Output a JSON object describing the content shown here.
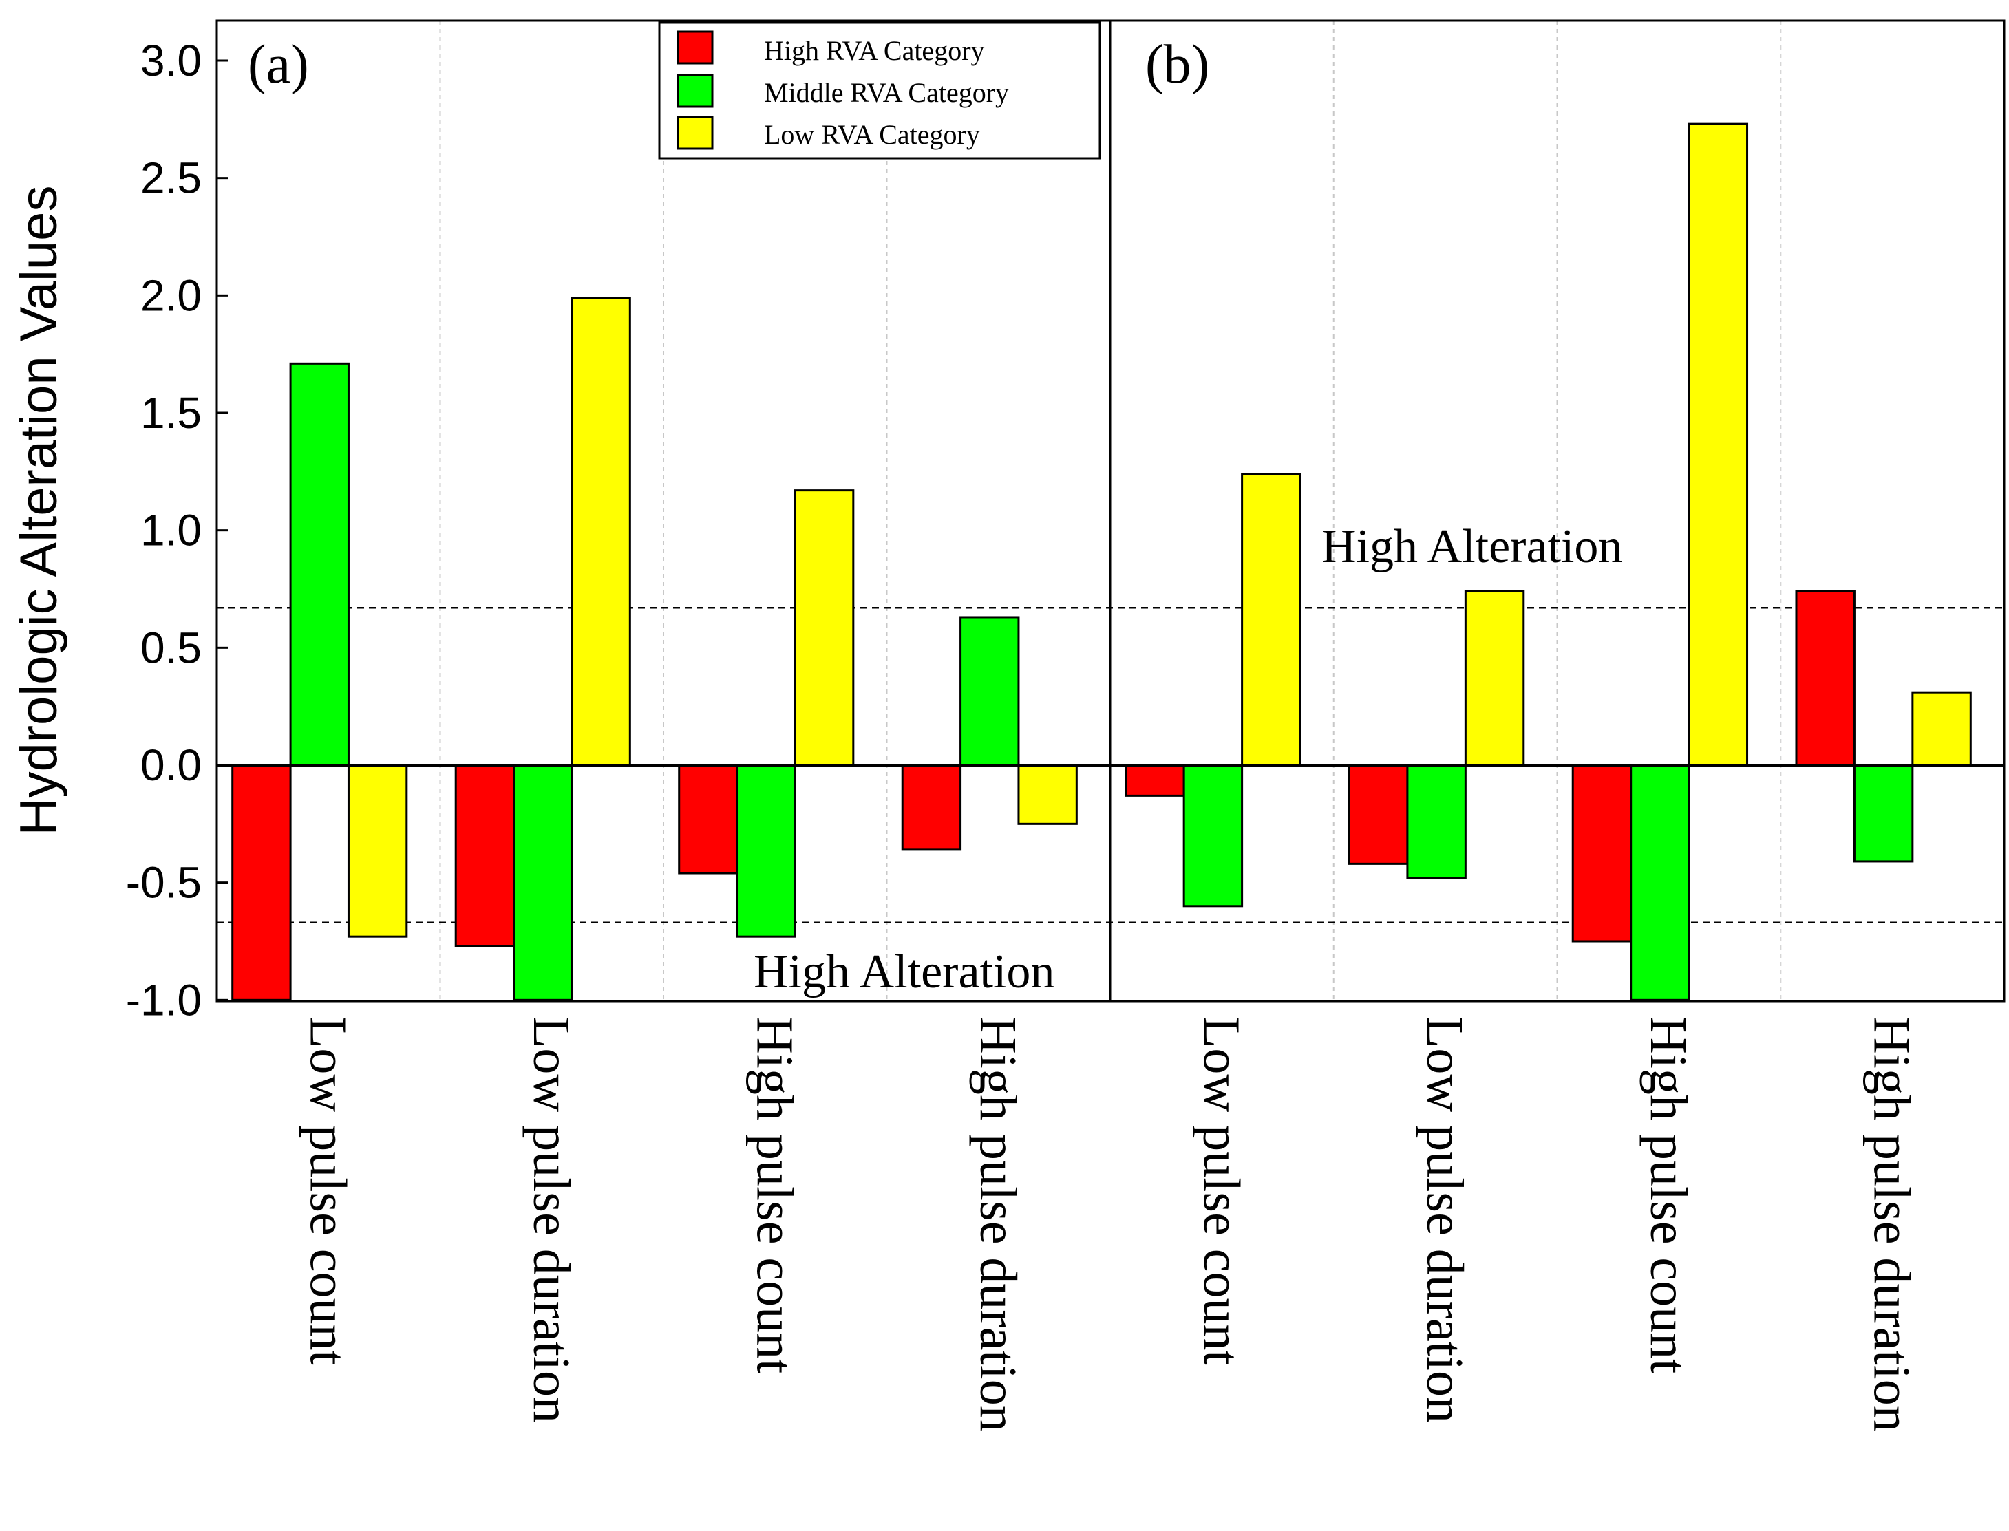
{
  "chart_data": {
    "type": "bar",
    "ylabel": "Hydrologic Alteration Values",
    "ylim": [
      -1.0,
      3.0
    ],
    "yticks": [
      3.0,
      2.5,
      2.0,
      1.5,
      1.0,
      0.5,
      0.0,
      -0.5,
      -1.0
    ],
    "ytick_labels": [
      "3.0",
      "2.5",
      "2.0",
      "1.5",
      "1.0",
      "0.5",
      "0.0",
      "-0.5",
      "-1.0"
    ],
    "threshold": 0.67,
    "annotation": "High Alteration",
    "colors": {
      "High RVA Category": "#ff0000",
      "Middle RVA Category": "#00ff00",
      "Low RVA Category": "#ffff00"
    },
    "legend": [
      "High RVA Category",
      "Middle RVA Category",
      "Low RVA Category"
    ],
    "panels": [
      {
        "label": "(a)",
        "categories": [
          "Low pulse count",
          "Low pulse duration",
          "High pulse count",
          "High pulse duration"
        ],
        "series": [
          {
            "name": "High RVA Category",
            "values": [
              -1.0,
              -0.77,
              -0.46,
              -0.36
            ]
          },
          {
            "name": "Middle RVA Category",
            "values": [
              1.71,
              -1.0,
              -0.73,
              0.63
            ]
          },
          {
            "name": "Low RVA Category",
            "values": [
              -0.73,
              1.99,
              1.17,
              -0.25
            ]
          }
        ]
      },
      {
        "label": "(b)",
        "categories": [
          "Low pulse count",
          "Low pulse duration",
          "High pulse count",
          "High pulse duration"
        ],
        "series": [
          {
            "name": "High RVA Category",
            "values": [
              -0.13,
              -0.42,
              -0.75,
              0.74
            ]
          },
          {
            "name": "Middle RVA Category",
            "values": [
              -0.6,
              -0.48,
              -1.0,
              -0.41
            ]
          },
          {
            "name": "Low RVA Category",
            "values": [
              1.24,
              0.74,
              2.73,
              0.31
            ]
          }
        ]
      }
    ]
  }
}
